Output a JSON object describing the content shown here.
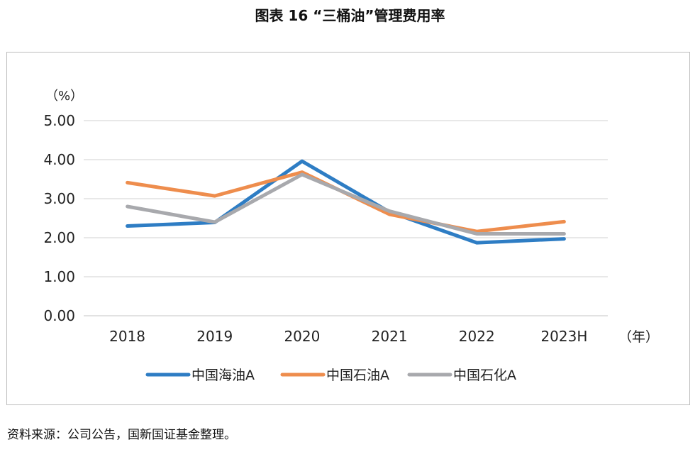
{
  "title": "图表 16 “三桶油”管理费用率",
  "source": "资料来源：公司公告，国新国证基金整理。",
  "chart_data": {
    "type": "line",
    "y_unit": "（%）",
    "x_unit": "（年）",
    "categories": [
      "2018",
      "2019",
      "2020",
      "2021",
      "2022",
      "2023H"
    ],
    "yticks": [
      "0.00",
      "1.00",
      "2.00",
      "3.00",
      "4.00",
      "5.00"
    ],
    "ylim": [
      0,
      5
    ],
    "grid": true,
    "legend_position": "bottom",
    "series": [
      {
        "name": "中国海油A",
        "color": "#2e7dc4",
        "values": [
          2.3,
          2.39,
          3.96,
          2.66,
          1.87,
          1.97
        ]
      },
      {
        "name": "中国石油A",
        "color": "#ee8d4d",
        "values": [
          3.41,
          3.07,
          3.68,
          2.6,
          2.16,
          2.41
        ]
      },
      {
        "name": "中国石化A",
        "color": "#a8a9ad",
        "values": [
          2.8,
          2.4,
          3.62,
          2.68,
          2.1,
          2.1
        ]
      }
    ]
  }
}
